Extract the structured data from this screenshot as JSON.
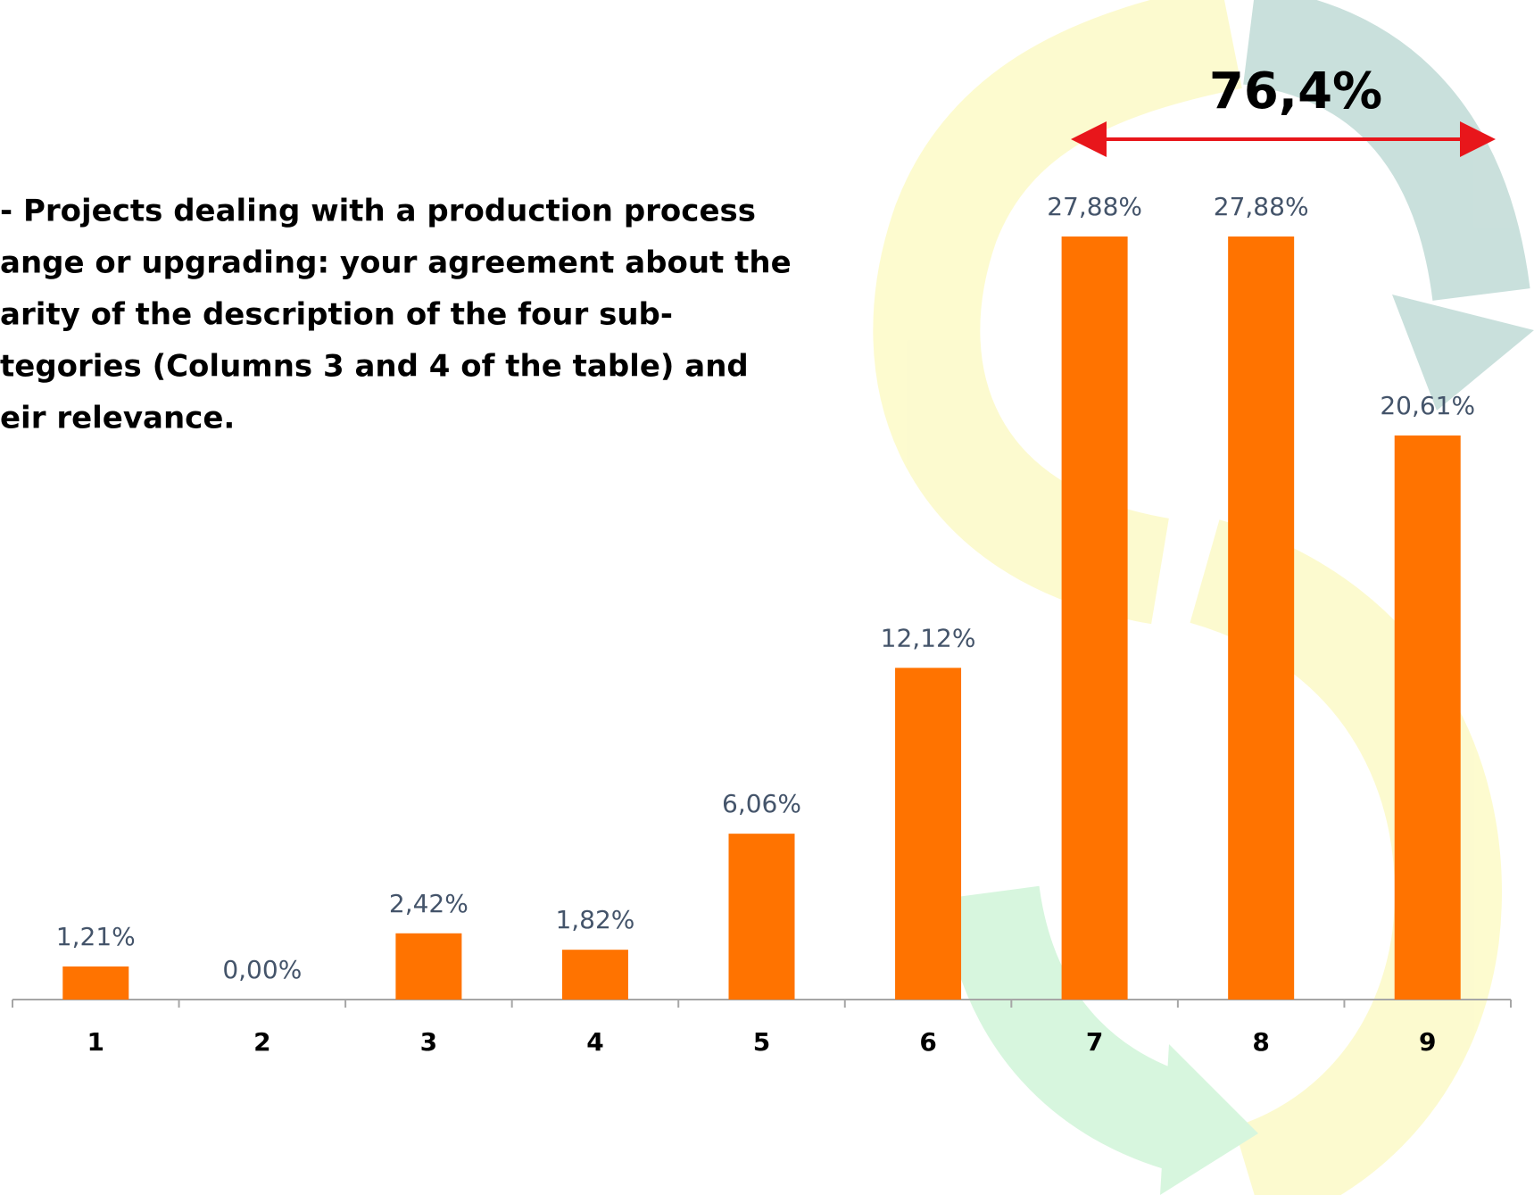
{
  "chart_data": {
    "type": "bar",
    "title_lines": [
      "- Projects dealing with a production process",
      "ange or upgrading: your agreement about the",
      "arity of the description of the four sub-",
      "tegories (Columns 3 and 4 of the table)  and",
      "eir relevance."
    ],
    "categories": [
      "1",
      "2",
      "3",
      "4",
      "5",
      "6",
      "7",
      "8",
      "9"
    ],
    "values": [
      1.21,
      0.0,
      2.42,
      1.82,
      6.06,
      12.12,
      27.88,
      27.88,
      20.61
    ],
    "value_labels": [
      "1,21%",
      "0,00%",
      "2,42%",
      "1,82%",
      "6,06%",
      "12,12%",
      "27,88%",
      "27,88%",
      "20,61%"
    ],
    "color": "#ff7300",
    "annotation": "76,4%"
  }
}
